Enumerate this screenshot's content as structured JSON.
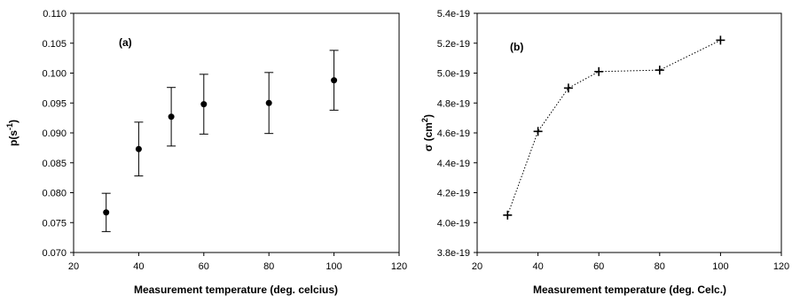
{
  "chart_data": [
    {
      "type": "scatter",
      "panel_label": "(a)",
      "xlabel": "Measurement temperature (deg. celcius)",
      "ylabel": "p(s",
      "ylabel_sup": "-1",
      "ylabel_end": ")",
      "xlim": [
        20,
        120
      ],
      "ylim": [
        0.07,
        0.11
      ],
      "x_ticks": [
        "20",
        "40",
        "60",
        "80",
        "100",
        "120"
      ],
      "y_ticks": [
        "0.070",
        "0.075",
        "0.080",
        "0.085",
        "0.090",
        "0.095",
        "0.100",
        "0.105",
        "0.110"
      ],
      "grid": false,
      "error_bars": true,
      "series": [
        {
          "x": [
            30,
            40,
            50,
            60,
            80,
            100
          ],
          "y": [
            0.0767,
            0.0873,
            0.0927,
            0.0948,
            0.095,
            0.0988
          ],
          "err": [
            0.0032,
            0.0045,
            0.0049,
            0.005,
            0.0051,
            0.005
          ]
        }
      ]
    },
    {
      "type": "line",
      "panel_label": "(b)",
      "xlabel": "Measurement temperature (deg. Celc.)",
      "ylabel": "σ (cm",
      "ylabel_sup": "2",
      "ylabel_end": ")",
      "xlim": [
        20,
        120
      ],
      "ylim": [
        3.8e-19,
        5.4e-19
      ],
      "x_ticks": [
        "20",
        "40",
        "60",
        "80",
        "100",
        "120"
      ],
      "y_ticks": [
        "3.8e-19",
        "4.0e-19",
        "4.2e-19",
        "4.4e-19",
        "4.6e-19",
        "4.8e-19",
        "5.0e-19",
        "5.2e-19",
        "5.4e-19"
      ],
      "grid": false,
      "line_style": "dotted",
      "marker": "plus",
      "series": [
        {
          "x": [
            30,
            40,
            50,
            60,
            80,
            100
          ],
          "y": [
            4.05e-19,
            4.61e-19,
            4.9e-19,
            5.01e-19,
            5.02e-19,
            5.22e-19
          ]
        }
      ]
    }
  ]
}
